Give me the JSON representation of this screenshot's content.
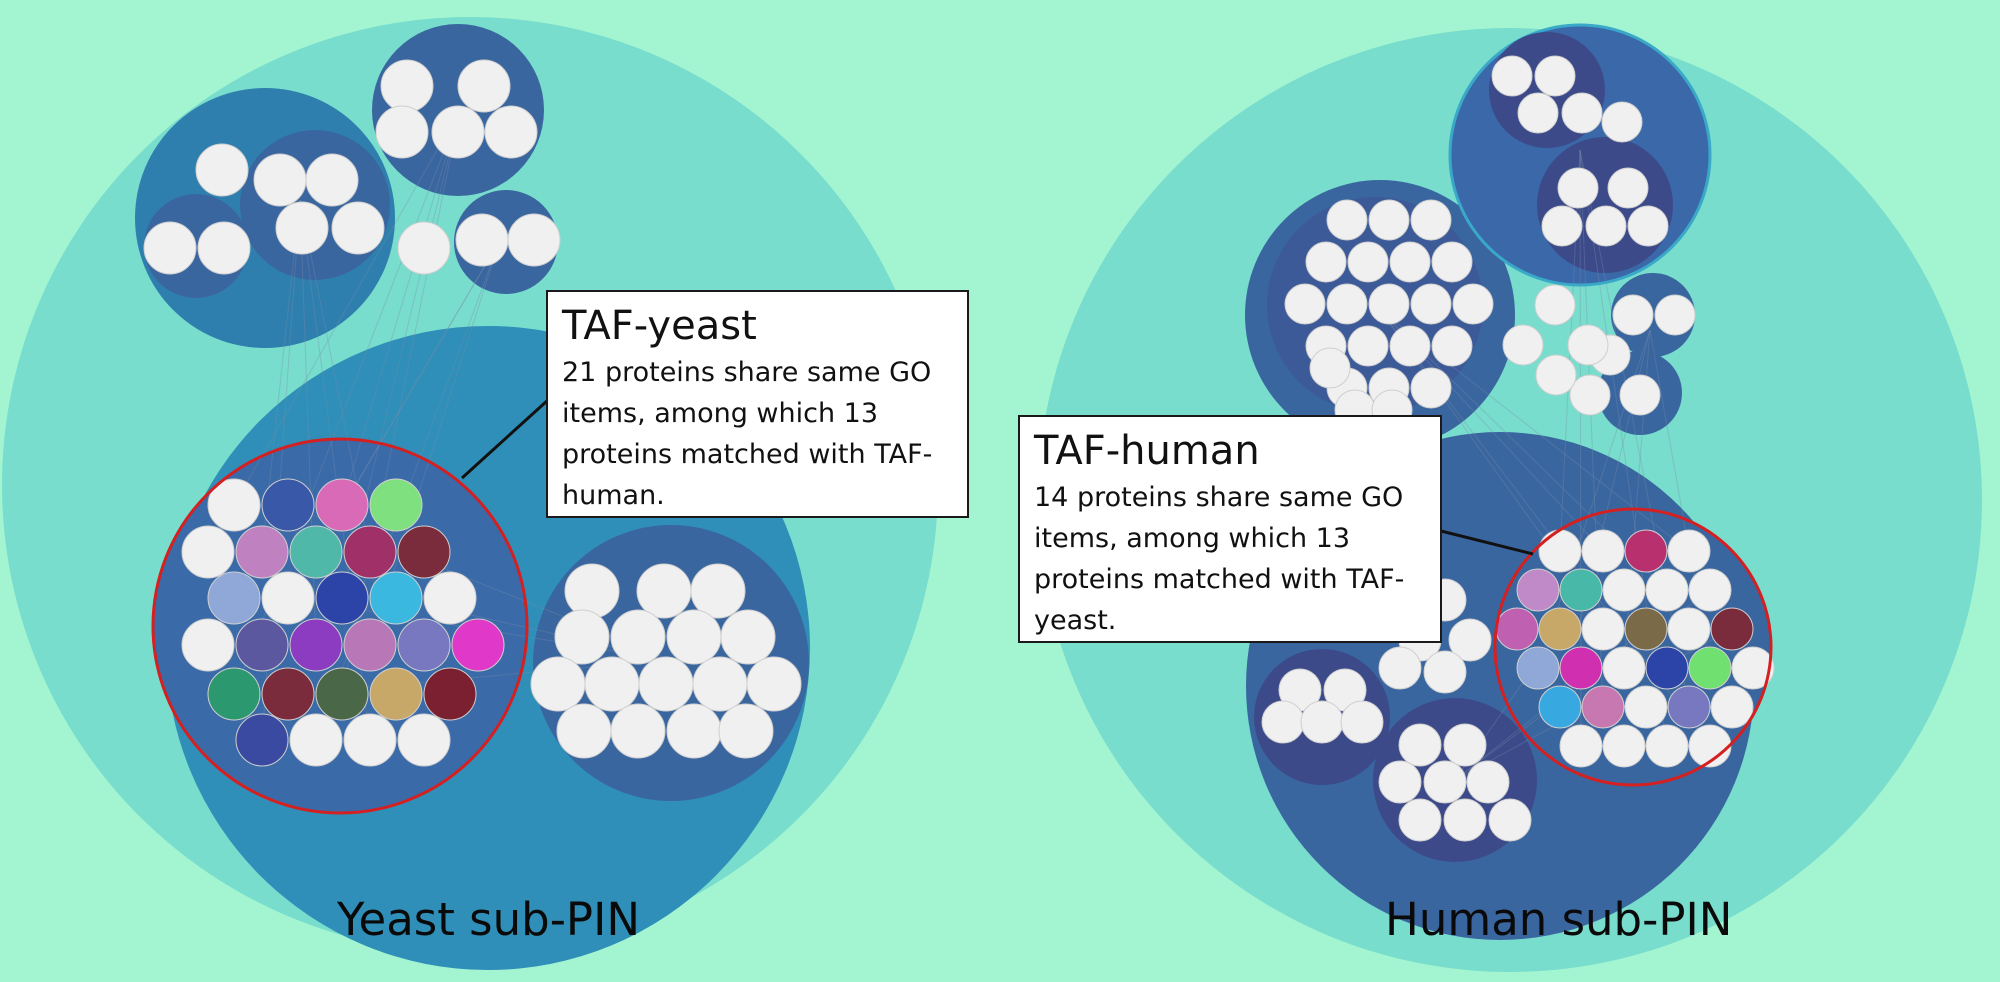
{
  "figure": {
    "colors": {
      "background": "#a3f5d2",
      "outer_circle": "#78ddcc",
      "mid_circle": "#2f8fb8",
      "cluster_circle": "#3a66a0",
      "dark_cluster": "#3c5590",
      "protein_white": "#f0f0f0",
      "highlight_ring": "#d42020"
    },
    "yeast": {
      "panel_label": "Yeast sub-PIN",
      "callout_title": "TAF-yeast",
      "callout_text": "21 proteins share same GO items, among which 13 proteins matched with TAF-human.",
      "taf_node_colors": [
        "#f0f0f0",
        "#3a58a8",
        "#d86ab8",
        "#7ee07e",
        "#f0f0f0",
        "#c081c0",
        "#4fb8a8",
        "#a03068",
        "#7a2c3c",
        "#8fa8d8",
        "#f0f0f0",
        "#2c44a8",
        "#3ab8e0",
        "#f0f0f0",
        "#f0f0f0",
        "#5c58a0",
        "#8c3cc0",
        "#b878b8",
        "#7878c0",
        "#e038c8",
        "#2c9870",
        "#7a2c3c",
        "#4a6848",
        "#c8a868",
        "#7a2030",
        "#3a4aa0",
        "#f0f0f0",
        "#f0f0f0",
        "#f0f0f0"
      ]
    },
    "human": {
      "panel_label": "Human sub-PIN",
      "callout_title": "TAF-human",
      "callout_text": "14 proteins share same GO items, among which 13 proteins matched with TAF-yeast.",
      "taf_node_colors": [
        "#f0f0f0",
        "#f0f0f0",
        "#b8306e",
        "#f0f0f0",
        "#c08ac8",
        "#48b8a8",
        "#f0f0f0",
        "#f0f0f0",
        "#f0f0f0",
        "#c060b0",
        "#c8a868",
        "#f0f0f0",
        "#7a6a48",
        "#f0f0f0",
        "#7a2c3c",
        "#8fa8d8",
        "#d030b0",
        "#f0f0f0",
        "#2c44a8",
        "#70e070",
        "#f0f0f0",
        "#38a8e0",
        "#c878b0",
        "#f0f0f0",
        "#7878c0",
        "#f0f0f0",
        "#f0f0f0",
        "#f0f0f0",
        "#f0f0f0",
        "#f0f0f0"
      ]
    }
  }
}
